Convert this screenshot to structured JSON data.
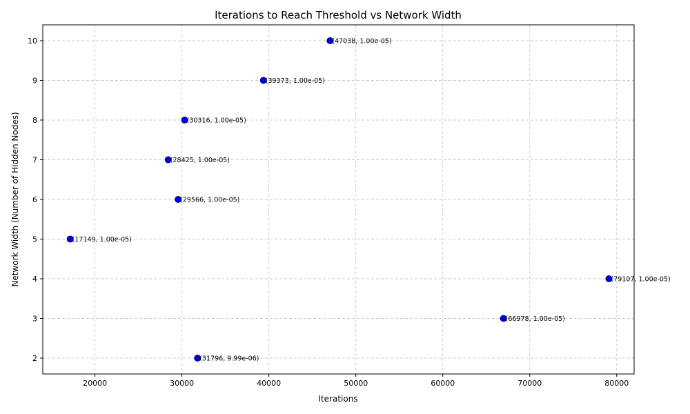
{
  "chart_data": {
    "type": "scatter",
    "title": "Iterations to Reach Threshold vs Network Width",
    "xlabel": "Iterations",
    "ylabel": "Network Width (Number of Hidden Nodes)",
    "xlim": [
      14000,
      82000
    ],
    "ylim": [
      1.6,
      10.4
    ],
    "xticks": [
      20000,
      30000,
      40000,
      50000,
      60000,
      70000,
      80000
    ],
    "yticks": [
      2,
      3,
      4,
      5,
      6,
      7,
      8,
      9,
      10
    ],
    "grid": true,
    "marker_color": "#0000dd",
    "points": [
      {
        "x": 31796,
        "y": 2,
        "label": "(31796, 9.99e-06)"
      },
      {
        "x": 66978,
        "y": 3,
        "label": "(66978, 1.00e-05)"
      },
      {
        "x": 79107,
        "y": 4,
        "label": "(79107, 1.00e-05)"
      },
      {
        "x": 17149,
        "y": 5,
        "label": "(17149, 1.00e-05)"
      },
      {
        "x": 29566,
        "y": 6,
        "label": "(29566, 1.00e-05)"
      },
      {
        "x": 28425,
        "y": 7,
        "label": "(28425, 1.00e-05)"
      },
      {
        "x": 30316,
        "y": 8,
        "label": "(30316, 1.00e-05)"
      },
      {
        "x": 39373,
        "y": 9,
        "label": "(39373, 1.00e-05)"
      },
      {
        "x": 47038,
        "y": 10,
        "label": "(47038, 1.00e-05)"
      }
    ]
  }
}
